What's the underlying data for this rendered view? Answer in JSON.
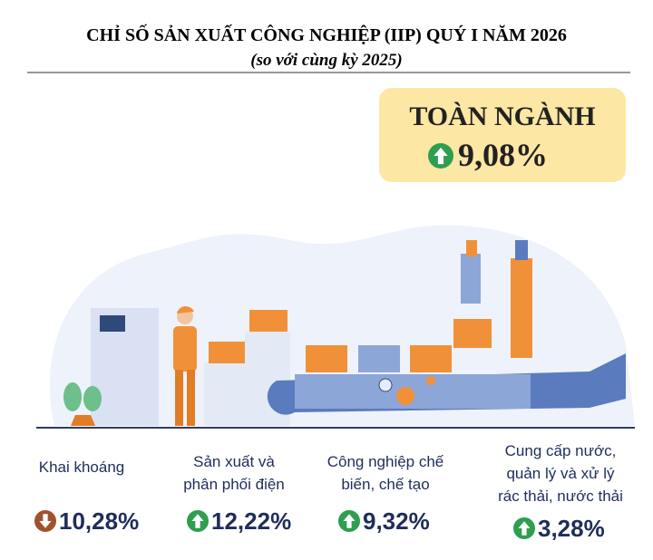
{
  "header": {
    "title": "CHỈ SỐ SẢN XUẤT CÔNG NGHIỆP (IIP) QUÝ I NĂM 2026",
    "subtitle": "(so với cùng kỳ 2025)"
  },
  "total": {
    "label": "TOÀN NGÀNH",
    "value": "9,08%",
    "trend": "up"
  },
  "sectors": [
    {
      "label": [
        "Khai khoáng"
      ],
      "value": "10,28%",
      "trend": "down"
    },
    {
      "label": [
        "Sản xuất và",
        "phân phối điện"
      ],
      "value": "12,22%",
      "trend": "up"
    },
    {
      "label": [
        "Công nghiệp chế",
        "biến, chế tạo"
      ],
      "value": "9,32%",
      "trend": "up"
    },
    {
      "label": [
        "Cung cấp nước,",
        "quản lý và xử lý",
        "rác thải, nước thải"
      ],
      "value": "3,28%",
      "trend": "up"
    }
  ]
}
